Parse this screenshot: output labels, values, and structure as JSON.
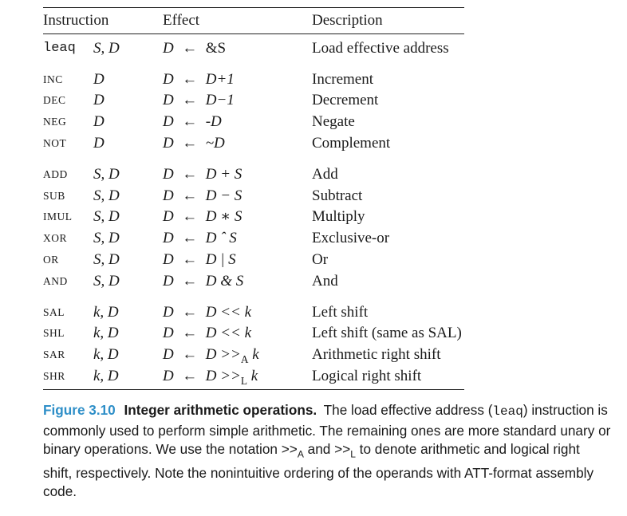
{
  "table": {
    "headers": {
      "instruction": "Instruction",
      "effect": "Effect",
      "description": "Description"
    },
    "arrow": "←",
    "groups": [
      {
        "rows": [
          {
            "op": "leaq",
            "mono": true,
            "operands": "S, D",
            "dest": "D",
            "expr": "&S",
            "description": "Load effective address"
          }
        ]
      },
      {
        "rows": [
          {
            "op": "INC",
            "operands": "D",
            "dest": "D",
            "expr": "D+1",
            "description": "Increment"
          },
          {
            "op": "DEC",
            "operands": "D",
            "dest": "D",
            "expr": "D−1",
            "description": "Decrement"
          },
          {
            "op": "NEG",
            "operands": "D",
            "dest": "D",
            "expr": "-D",
            "description": "Negate"
          },
          {
            "op": "NOT",
            "operands": "D",
            "dest": "D",
            "expr": "~D",
            "description": "Complement"
          }
        ]
      },
      {
        "rows": [
          {
            "op": "ADD",
            "operands": "S, D",
            "dest": "D",
            "expr": "D + S",
            "description": "Add"
          },
          {
            "op": "SUB",
            "operands": "S, D",
            "dest": "D",
            "expr": "D − S",
            "description": "Subtract"
          },
          {
            "op": "IMUL",
            "operands": "S, D",
            "dest": "D",
            "expr": "D ∗ S",
            "description": "Multiply"
          },
          {
            "op": "XOR",
            "operands": "S, D",
            "dest": "D",
            "expr": "D ˆ S",
            "description": "Exclusive-or"
          },
          {
            "op": "OR",
            "operands": "S, D",
            "dest": "D",
            "expr": "D | S",
            "description": "Or"
          },
          {
            "op": "AND",
            "operands": "S, D",
            "dest": "D",
            "expr": "D & S",
            "description": "And"
          }
        ]
      },
      {
        "rows": [
          {
            "op": "SAL",
            "operands": "k, D",
            "dest": "D",
            "expr": "D << k",
            "description": "Left shift"
          },
          {
            "op": "SHL",
            "operands": "k, D",
            "dest": "D",
            "expr": "D << k",
            "description": "Left shift (same as SAL)"
          },
          {
            "op": "SAR",
            "operands": "k, D",
            "dest": "D",
            "expr": "D >>A k",
            "description": "Arithmetic right shift"
          },
          {
            "op": "SHR",
            "operands": "k, D",
            "dest": "D",
            "expr": "D >>L k",
            "description": "Logical right shift"
          }
        ]
      }
    ]
  },
  "caption": {
    "label": "Figure 3.10",
    "title": "Integer arithmetic operations.",
    "text_1": "The load effective address (",
    "code": "leaq",
    "text_2": ") instruction is commonly used to perform simple arithmetic. The remaining ones are more standard unary or binary operations. We use the notation",
    "notation_a": ">>A",
    "and_word": "and",
    "notation_l": ">>L",
    "text_3": "to denote arithmetic and logical right shift, respectively. Note the nonintuitive ordering of the operands with ATT-format assembly code."
  },
  "colors": {
    "figure_label": "#2f8fc8",
    "rule": "#222222",
    "text": "#1a1a1a"
  }
}
